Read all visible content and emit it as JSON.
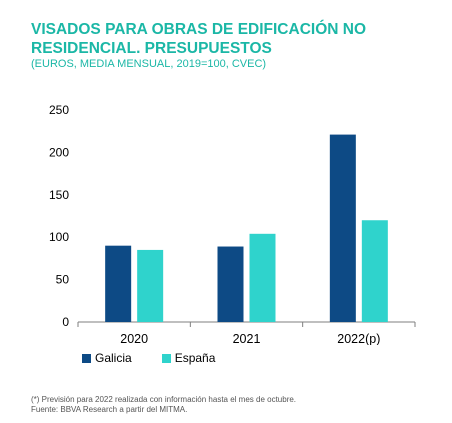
{
  "title": "VISADOS PARA OBRAS DE EDIFICACIÓN NO RESIDENCIAL. PRESUPUESTOS",
  "subtitle": "(EUROS, MEDIA MENSUAL, 2019=100, CVEC)",
  "footnotes": {
    "line1": "(*) Previsión para 2022 realizada con información hasta el mes de octubre.",
    "line2": "Fuente: BBVA Research a partir del MITMA."
  },
  "colors": {
    "title": "#1bb7a6",
    "galicia": "#0d4a85",
    "espana": "#2fd3cc",
    "axis": "#7f7f7f"
  },
  "chart_data": {
    "type": "bar",
    "categories": [
      "2020",
      "2021",
      "2022(p)"
    ],
    "series": [
      {
        "name": "Galicia",
        "values": [
          90,
          89,
          221
        ]
      },
      {
        "name": "España",
        "values": [
          85,
          104,
          120
        ]
      }
    ],
    "ylim": [
      0,
      250
    ],
    "yticks": [
      "0",
      "50",
      "100",
      "150",
      "200",
      "250"
    ],
    "grid": false,
    "legend": "bottom-left"
  }
}
